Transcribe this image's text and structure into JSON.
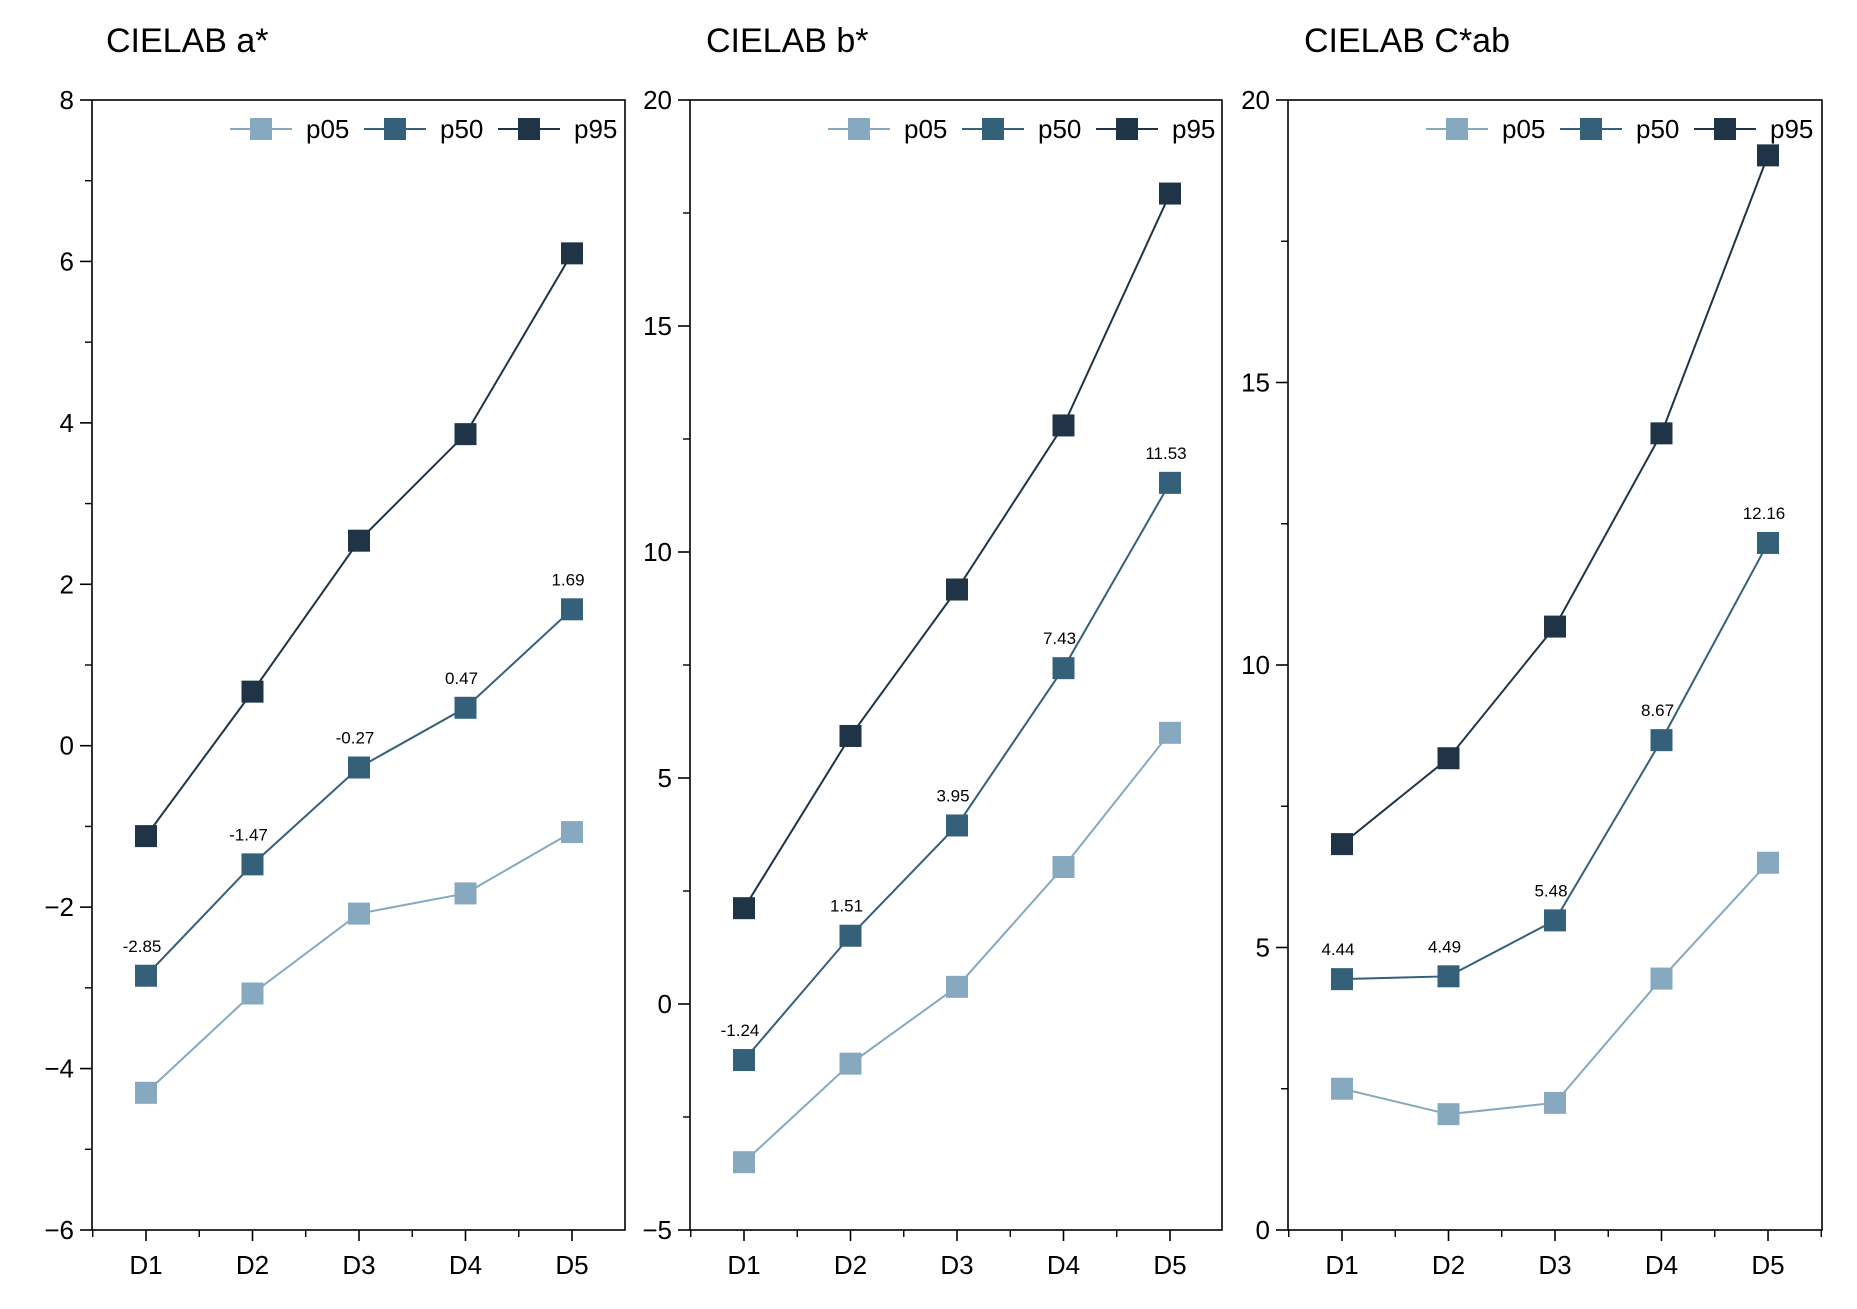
{
  "colors": {
    "p05": "#86a9bf",
    "p50": "#356079",
    "p95": "#1f3547",
    "axis": "#000000"
  },
  "chart_data": [
    {
      "type": "line",
      "title": "CIELAB a*",
      "categories": [
        "D1",
        "D2",
        "D3",
        "D4",
        "D5"
      ],
      "ylim": [
        -6,
        8
      ],
      "yticks": [
        -6,
        -4,
        -2,
        0,
        2,
        4,
        6,
        8
      ],
      "yminor": 1,
      "ytick_labels": [
        "−6",
        "−4",
        "−2",
        "0",
        "2",
        "4",
        "6",
        "8"
      ],
      "legend": "top-right",
      "grid": false,
      "series": [
        {
          "name": "p05",
          "values": [
            -4.3,
            -3.07,
            -2.08,
            -1.83,
            -1.07
          ]
        },
        {
          "name": "p50",
          "values": [
            -2.85,
            -1.47,
            -0.27,
            0.47,
            1.69
          ],
          "labels": [
            "-2.85",
            "-1.47",
            "-0.27",
            "0.47",
            "1.69"
          ]
        },
        {
          "name": "p95",
          "values": [
            -1.12,
            0.67,
            2.54,
            3.86,
            6.1
          ]
        }
      ]
    },
    {
      "type": "line",
      "title": "CIELAB b*",
      "categories": [
        "D1",
        "D2",
        "D3",
        "D4",
        "D5"
      ],
      "ylim": [
        -5,
        20
      ],
      "yticks": [
        -5,
        0,
        5,
        10,
        15,
        20
      ],
      "yminor": 2.5,
      "ytick_labels": [
        "−5",
        "0",
        "5",
        "10",
        "15",
        "20"
      ],
      "legend": "top-right",
      "grid": false,
      "series": [
        {
          "name": "p05",
          "values": [
            -3.5,
            -1.32,
            0.38,
            3.03,
            6.0
          ]
        },
        {
          "name": "p50",
          "values": [
            -1.24,
            1.51,
            3.95,
            7.43,
            11.53
          ],
          "labels": [
            "-1.24",
            "1.51",
            "3.95",
            "7.43",
            "11.53"
          ]
        },
        {
          "name": "p95",
          "values": [
            2.12,
            5.93,
            9.17,
            12.8,
            17.93
          ]
        }
      ]
    },
    {
      "type": "line",
      "title": "CIELAB C*ab",
      "categories": [
        "D1",
        "D2",
        "D3",
        "D4",
        "D5"
      ],
      "ylim": [
        0,
        20
      ],
      "yticks": [
        0,
        5,
        10,
        15,
        20
      ],
      "yminor": 2.5,
      "ytick_labels": [
        "0",
        "5",
        "10",
        "15",
        "20"
      ],
      "legend": "top-right",
      "grid": false,
      "series": [
        {
          "name": "p05",
          "values": [
            2.5,
            2.05,
            2.25,
            4.45,
            6.5
          ]
        },
        {
          "name": "p50",
          "values": [
            4.44,
            4.49,
            5.48,
            8.67,
            12.16
          ],
          "labels": [
            "4.44",
            "4.49",
            "5.48",
            "8.67",
            "12.16"
          ]
        },
        {
          "name": "p95",
          "values": [
            6.83,
            8.35,
            10.68,
            14.1,
            19.02
          ]
        }
      ]
    }
  ]
}
